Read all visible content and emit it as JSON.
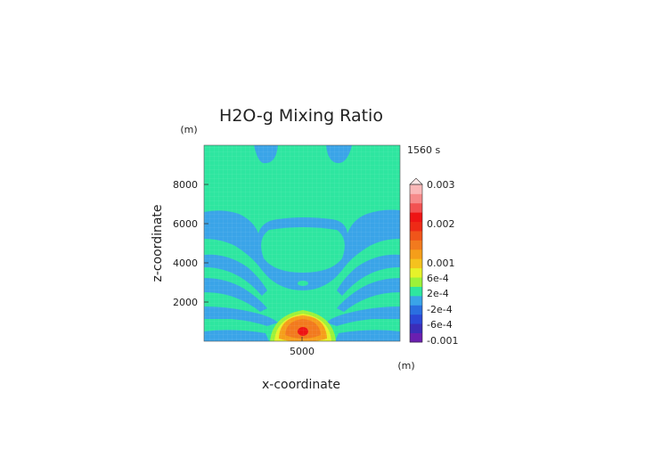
{
  "chart_data": {
    "type": "heatmap",
    "title": "H2O-g Mixing Ratio",
    "time_label": "1560 s",
    "xlabel": "x-coordinate",
    "ylabel": "z-coordinate",
    "x_unit": "(m)",
    "y_unit": "(m)",
    "xlim": [
      0,
      10000
    ],
    "ylim": [
      0,
      10000
    ],
    "x_ticks": [
      5000
    ],
    "y_ticks": [
      2000,
      4000,
      6000,
      8000
    ],
    "colorbar": {
      "tick_labels": [
        "0.003",
        "0.002",
        "0.001",
        "6e-4",
        "2e-4",
        "-2e-4",
        "-6e-4",
        "-0.001"
      ],
      "levels": [
        {
          "upper": -0.0008,
          "color": "#6a1fb0"
        },
        {
          "upper": -0.0006,
          "color": "#3b2db8"
        },
        {
          "upper": -0.0004,
          "color": "#2b48d6"
        },
        {
          "upper": -0.0002,
          "color": "#2a6fe0"
        },
        {
          "upper": 0.0,
          "color": "#3aa4e8"
        },
        {
          "upper": 0.0002,
          "color": "#2ee6a0"
        },
        {
          "upper": 0.0004,
          "color": "#9cf23a"
        },
        {
          "upper": 0.0006,
          "color": "#e6f22a"
        },
        {
          "upper": 0.0008,
          "color": "#f5c21e"
        },
        {
          "upper": 0.001,
          "color": "#f59e1a"
        },
        {
          "upper": 0.0013,
          "color": "#f27a1e"
        },
        {
          "upper": 0.0016,
          "color": "#f0551a"
        },
        {
          "upper": 0.0019,
          "color": "#ee2a16"
        },
        {
          "upper": 0.0022,
          "color": "#ee1414"
        },
        {
          "upper": 0.0025,
          "color": "#f25252"
        },
        {
          "upper": 0.0028,
          "color": "#f68a8a"
        },
        {
          "upper": 0.003,
          "color": "#fab8b8"
        }
      ]
    },
    "field_regions": [
      {
        "name": "background",
        "value": 0.0001,
        "color": "#2ee6a0"
      },
      {
        "name": "upper-left-band",
        "value": -0.0001,
        "color": "#3aa4e8"
      },
      {
        "name": "upper-right-band",
        "value": -0.0001,
        "color": "#3aa4e8"
      },
      {
        "name": "central-plume-cap",
        "value": -0.0001,
        "color": "#3aa4e8"
      },
      {
        "name": "low-level-bands",
        "value": -0.0001,
        "color": "#3aa4e8"
      },
      {
        "name": "bubble-outer",
        "value": 0.0005,
        "color": "#e6f22a"
      },
      {
        "name": "bubble-core",
        "value": 0.0012,
        "color": "#f27a1e"
      },
      {
        "name": "bubble-center",
        "value": 0.002,
        "color": "#ee1414"
      }
    ]
  }
}
